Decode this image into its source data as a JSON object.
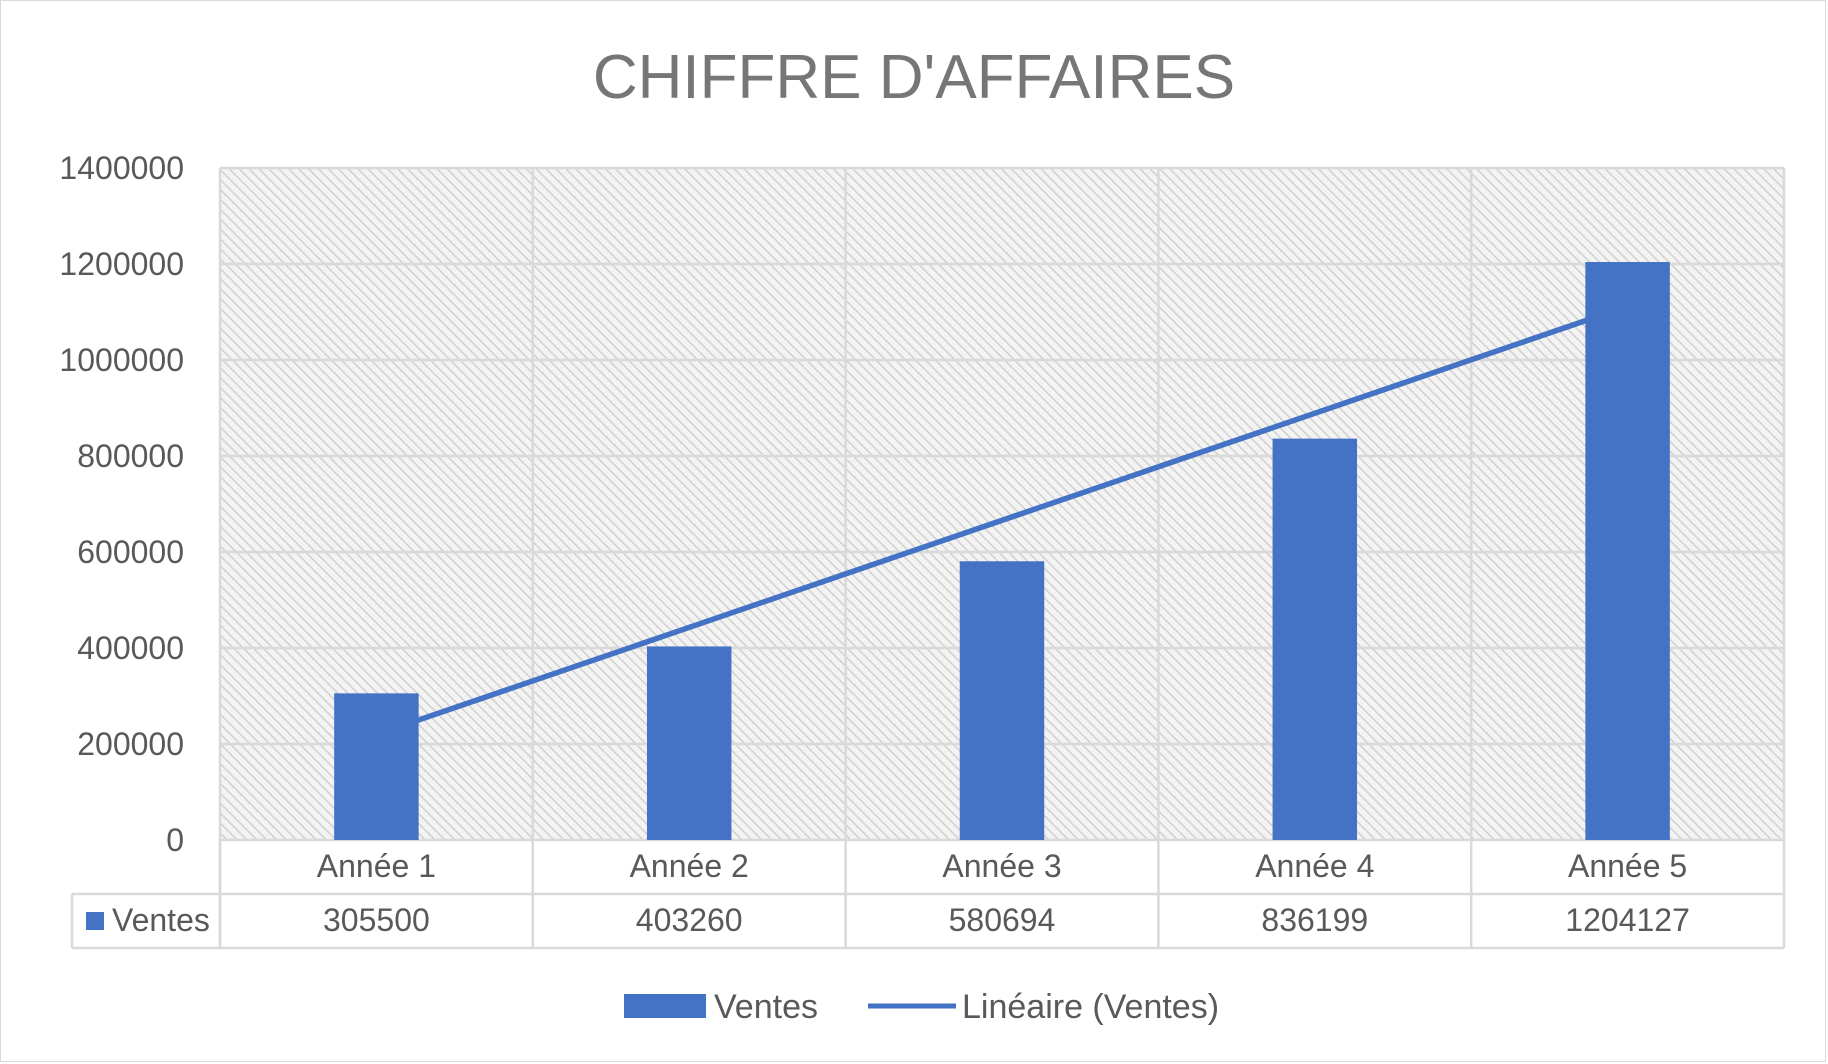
{
  "chart_data": {
    "type": "bar",
    "title": "CHIFFRE D'AFFAIRES",
    "categories": [
      "Année 1",
      "Année 2",
      "Année 3",
      "Année 4",
      "Année 5"
    ],
    "series": [
      {
        "name": "Ventes",
        "values": [
          305500,
          403260,
          580694,
          836199,
          1204127
        ],
        "color": "#4472c4"
      }
    ],
    "trendline": {
      "name": "Linéaire (Ventes)",
      "kind": "linear",
      "of_series": "Ventes",
      "color": "#4472c4"
    },
    "ylim": [
      0,
      1400000
    ],
    "yticks": [
      0,
      200000,
      400000,
      600000,
      800000,
      1000000,
      1200000,
      1400000
    ],
    "ytick_labels": [
      "0",
      "200000",
      "400000",
      "600000",
      "800000",
      "1000000",
      "1200000",
      "1400000"
    ],
    "grid": true,
    "plot_background": "hatched-gray",
    "data_table": {
      "shown": true,
      "row_label": "Ventes",
      "values": [
        "305500",
        "403260",
        "580694",
        "836199",
        "1204127"
      ]
    },
    "legend": {
      "position": "bottom",
      "entries": [
        "Ventes",
        "Linéaire (Ventes)"
      ]
    }
  }
}
